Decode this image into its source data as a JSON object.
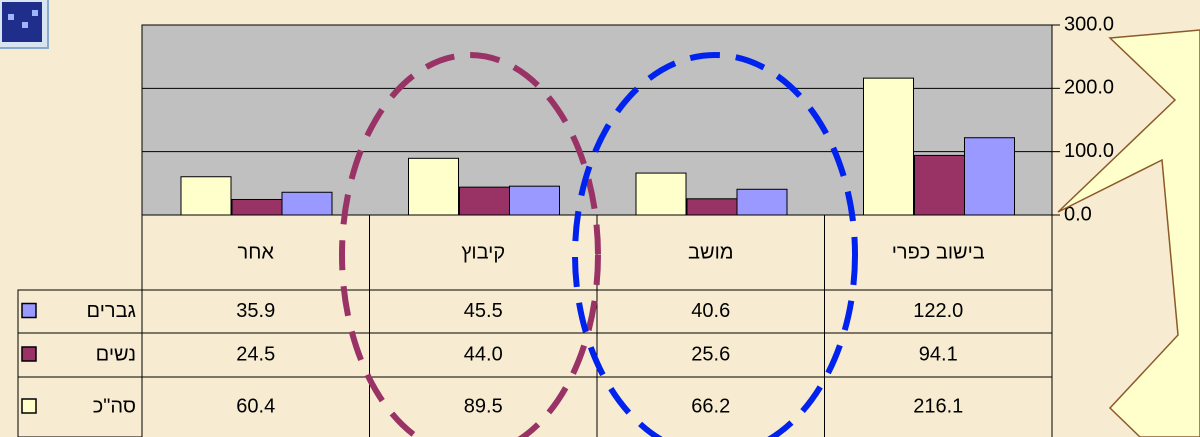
{
  "chart_data": {
    "type": "bar",
    "categories": [
      "אחר",
      "קיבוץ",
      "מושב",
      "בישוב כפרי"
    ],
    "series": [
      {
        "name": "סה\"כ",
        "color": "#ffffcc",
        "values": [
          60.4,
          89.5,
          66.2,
          216.1
        ],
        "value_labels": [
          "60.4",
          "89.5",
          "66.2",
          "216.1"
        ]
      },
      {
        "name": "נשים",
        "color": "#993366",
        "values": [
          24.5,
          44.0,
          25.6,
          94.1
        ],
        "value_labels": [
          "24.5",
          "44.0",
          "25.6",
          "94.1"
        ]
      },
      {
        "name": "גברים",
        "color": "#9999ff",
        "values": [
          35.9,
          45.5,
          40.6,
          122.0
        ],
        "value_labels": [
          "35.9",
          "45.5",
          "40.6",
          "122.0"
        ]
      }
    ],
    "ylim": [
      0,
      300
    ],
    "yticks": [
      {
        "value": 0,
        "label": "0.0"
      },
      {
        "value": 100,
        "label": "100.0"
      },
      {
        "value": 200,
        "label": "200.0"
      },
      {
        "value": 300,
        "label": "300.0"
      }
    ],
    "grid": true
  }
}
